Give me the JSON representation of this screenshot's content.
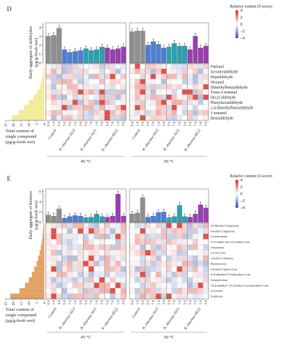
{
  "colors": {
    "control": "#8f8f8f",
    "k1613": "#4c7fd6",
    "k1615": "#2aa0b0",
    "k6e22": "#9a3fb0",
    "heat_pos": "#d9342b",
    "heat_neg": "#3d5aa8",
    "hist_D": "#f2ec9a",
    "hist_E": "#e2a266"
  },
  "panels": [
    {
      "label": "D",
      "ylabel": "Daily aggregate of aldehydes",
      "yunit": "(μg/g-fresh wet)",
      "yticks": [
        "0",
        "1",
        "2",
        "3",
        "4"
      ],
      "ymax": 4.5,
      "histogram_color_key": "hist_D",
      "histogram_ticks": [
        "25",
        "20",
        "15",
        "10",
        "5",
        "0"
      ],
      "histogram_ylabel_lines": [
        "Total content of",
        "single compound",
        "(μg/g-fresh wet)"
      ],
      "compounds": [
        "Furfural",
        "Isovaleraldehyde",
        "Heptaldehyde",
        "Hexanal",
        "Dimethylbenzaldehyde",
        "Trans-2-nonenal",
        "Decyl aldehyde",
        "Phenylacetaldehyde",
        "2,4-dimethylbenzaldehyde",
        "1-nonanal",
        "Benzaldehyde"
      ],
      "histogram_values": [
        0.4,
        0.7,
        1.2,
        2,
        3,
        4.5,
        7,
        10,
        13,
        16.5,
        21
      ],
      "bars_45": [
        3.0,
        3.1,
        3.9,
        1.5,
        1.2,
        1.3,
        1.4,
        1.6,
        1.4,
        1.5,
        1.8,
        1.7,
        1.5,
        1.6,
        1.8
      ],
      "bars_50": [
        3.5,
        3.6,
        3.6,
        2.0,
        2.4,
        2.1,
        1.7,
        1.8,
        2.2,
        1.9,
        1.9,
        1.5,
        3.0,
        1.7,
        1.9
      ],
      "legend_title": "Relative content (Z-score)",
      "legend_ticks": [
        "4",
        "2",
        "0",
        "−2",
        "−4"
      ],
      "heat_seed": 11
    },
    {
      "label": "E",
      "ylabel": "Daily aggregate of ketones",
      "yunit": "(μg/g-fresh wet)",
      "yticks": [
        "0",
        "2",
        "4",
        "6"
      ],
      "ymax": 6.5,
      "histogram_color_key": "hist_E",
      "histogram_ticks": [
        "25",
        "20",
        "15",
        "10",
        "5",
        "0"
      ],
      "histogram_ylabel_lines": [
        "Total content of",
        "single compound",
        "(μg/g-fresh wet)"
      ],
      "compounds": [
        "4,6-dimethyl-2-heptanone",
        "6-methyl-2-heptanone",
        "Cyclohexanone",
        "3,5-octadien-one,3,5-octadien-2-one",
        "2-heptanone",
        "2-octen-2-one",
        "3-methyl-2-butanone",
        "Phenylacetone",
        "6-methyl-5-hepten-2-one",
        "6,10-dimethyl-5,9-undecadien-2-one",
        "Geranylacetone",
        "2,6,6-trimethyl-1-(2,4-methyl-3-cyclohexadien-1-one",
        "2-octanone",
        "Isophorone"
      ],
      "histogram_values": [
        0.5,
        0.8,
        1.2,
        1.6,
        2.2,
        3,
        4,
        5,
        6.5,
        8,
        10,
        12.5,
        16,
        22
      ],
      "bars_45": [
        1.4,
        1.2,
        2.6,
        0.8,
        1.1,
        1.3,
        1.2,
        0.9,
        1.0,
        1.6,
        1.1,
        1.0,
        1.2,
        5.5,
        1.2
      ],
      "bars_50": [
        1.6,
        1.8,
        4.8,
        1.0,
        1.2,
        1.9,
        2.0,
        0.9,
        1.1,
        3.3,
        1.1,
        1.0,
        1.6,
        3.4,
        2.8
      ],
      "legend_title": "Relative content (Z-score)",
      "legend_ticks": [
        "4",
        "2",
        "0",
        "−2",
        "−4"
      ],
      "heat_seed": 29
    }
  ],
  "groups": [
    "Control",
    "K. eburnea 1613",
    "K. eburnea 1615",
    "K. eburnea 6E22"
  ],
  "group_color_keys": [
    "control",
    "k1613",
    "k1615",
    "k6e22"
  ],
  "day_labels": [
    "0 d",
    "1 d",
    "3 d",
    "5 d",
    "7 d",
    "1 d",
    "3 d",
    "5 d",
    "7 d",
    "1 d",
    "3 d",
    "5 d",
    "7 d",
    "1 d",
    "3 d"
  ],
  "temps": [
    "45 °C",
    "50 °C"
  ],
  "chart_data": [
    {
      "type": "heatmap",
      "title": "Daily aggregate of aldehydes",
      "ylabel": "Daily aggregate of aldehydes (μg/g-fresh wet)",
      "rows": [
        "Furfural",
        "Isovaleraldehyde",
        "Heptaldehyde",
        "Hexanal",
        "Dimethylbenzaldehyde",
        "Trans-2-nonenal",
        "Decyl aldehyde",
        "Phenylacetaldehyde",
        "2,4-dimethylbenzaldehyde",
        "1-nonanal",
        "Benzaldehyde"
      ],
      "groups": [
        "Control",
        "K. eburnea 1613",
        "K. eburnea 1615",
        "K. eburnea 6E22"
      ],
      "temperatures": [
        "45 °C",
        "50 °C"
      ],
      "zscore_range": [
        -4,
        4
      ]
    },
    {
      "type": "heatmap",
      "title": "Daily aggregate of ketones",
      "ylabel": "Daily aggregate of ketones (μg/g-fresh wet)",
      "rows": [
        "4,6-dimethyl-2-heptanone",
        "6-methyl-2-heptanone",
        "Cyclohexanone",
        "3,5-octadien-one,3,5-octadien-2-one",
        "2-heptanone",
        "2-octen-2-one",
        "3-methyl-2-butanone",
        "Phenylacetone",
        "6-methyl-5-hepten-2-one",
        "6,10-dimethyl-5,9-undecadien-2-one",
        "Geranylacetone",
        "2,6,6-trimethyl-1-(2,4-methyl-3-cyclohexadien-1-one",
        "2-octanone",
        "Isophorone"
      ],
      "groups": [
        "Control",
        "K. eburnea 1613",
        "K. eburnea 1615",
        "K. eburnea 6E22"
      ],
      "temperatures": [
        "45 °C",
        "50 °C"
      ],
      "zscore_range": [
        -4,
        4
      ]
    }
  ]
}
